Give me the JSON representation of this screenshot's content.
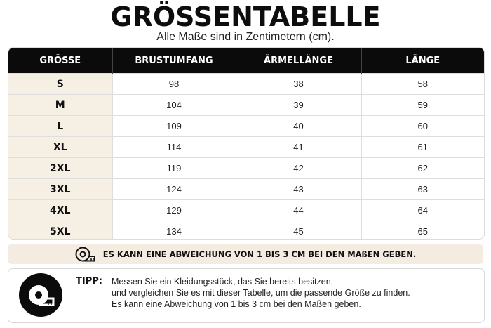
{
  "title": "GRÖSSENTABELLE",
  "subtitle": "Alle Maße sind in Zentimetern (cm).",
  "table": {
    "headers": [
      "GRÖSSE",
      "BRUSTUMFANG",
      "ÄRMELLÄNGE",
      "LÄNGE"
    ],
    "rows": [
      [
        "S",
        "98",
        "38",
        "58"
      ],
      [
        "M",
        "104",
        "39",
        "59"
      ],
      [
        "L",
        "109",
        "40",
        "60"
      ],
      [
        "XL",
        "114",
        "41",
        "61"
      ],
      [
        "2XL",
        "119",
        "42",
        "62"
      ],
      [
        "3XL",
        "124",
        "43",
        "63"
      ],
      [
        "4XL",
        "129",
        "44",
        "64"
      ],
      [
        "5XL",
        "134",
        "45",
        "65"
      ]
    ]
  },
  "banner": {
    "icon": "measuring-tape-icon",
    "text": "ES KANN EINE ABWEICHUNG VON 1 BIS 3 CM BEI DEN MAßEN GEBEN."
  },
  "tip": {
    "icon": "measuring-tape-icon",
    "label": "TIPP:",
    "lines": [
      "Messen Sie ein Kleidungsstück, das Sie bereits besitzen,",
      "und vergleichen Sie es mit dieser Tabelle, um die passende Größe zu finden.",
      "Es kann eine Abweichung von 1 bis 3 cm bei den Maßen geben."
    ]
  },
  "colors": {
    "header_bg": "#0b0b0b",
    "size_column_bg": "#f6efe4",
    "banner_bg": "#f4ece0"
  }
}
